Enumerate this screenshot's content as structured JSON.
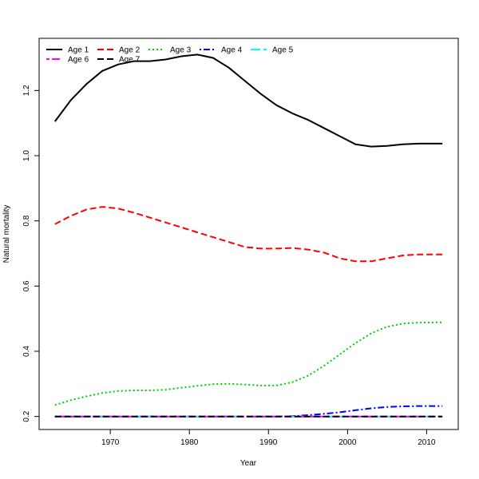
{
  "chart_data": {
    "type": "line",
    "title": "",
    "xlabel": "Year",
    "ylabel": "Natural mortality",
    "xlim": [
      1961,
      2014
    ],
    "ylim": [
      0.16,
      1.36
    ],
    "xticks": [
      1970,
      1980,
      1990,
      2000,
      2010
    ],
    "yticks": [
      0.2,
      0.4,
      0.6,
      0.8,
      1.0,
      1.2
    ],
    "grid": false,
    "legend": "top-left",
    "x": [
      1963,
      1965,
      1967,
      1969,
      1971,
      1973,
      1975,
      1977,
      1979,
      1981,
      1983,
      1985,
      1987,
      1989,
      1991,
      1993,
      1995,
      1997,
      1999,
      2001,
      2003,
      2005,
      2007,
      2009,
      2012
    ],
    "series": [
      {
        "name": "Age 1",
        "color": "#000000",
        "dash": "solid",
        "values": [
          1.105,
          1.17,
          1.22,
          1.26,
          1.28,
          1.29,
          1.29,
          1.295,
          1.305,
          1.31,
          1.3,
          1.27,
          1.23,
          1.19,
          1.155,
          1.13,
          1.11,
          1.085,
          1.06,
          1.035,
          1.028,
          1.03,
          1.035,
          1.037,
          1.037
        ]
      },
      {
        "name": "Age 2",
        "color": "#ff0000",
        "dash": "dashed",
        "values": [
          0.79,
          0.815,
          0.835,
          0.843,
          0.838,
          0.825,
          0.81,
          0.795,
          0.78,
          0.765,
          0.75,
          0.735,
          0.72,
          0.715,
          0.715,
          0.717,
          0.712,
          0.703,
          0.685,
          0.676,
          0.676,
          0.685,
          0.694,
          0.697,
          0.697
        ]
      },
      {
        "name": "Age 3",
        "color": "#00cd00",
        "dash": "dotted",
        "values": [
          0.235,
          0.25,
          0.262,
          0.272,
          0.278,
          0.28,
          0.28,
          0.282,
          0.288,
          0.294,
          0.299,
          0.3,
          0.298,
          0.295,
          0.295,
          0.305,
          0.325,
          0.355,
          0.39,
          0.425,
          0.455,
          0.475,
          0.485,
          0.488,
          0.489
        ]
      },
      {
        "name": "Age 4",
        "color": "#0000ff",
        "dash": "dotdash",
        "values": [
          0.2,
          0.2,
          0.2,
          0.2,
          0.2,
          0.2,
          0.2,
          0.2,
          0.2,
          0.2,
          0.2,
          0.2,
          0.2,
          0.2,
          0.2,
          0.201,
          0.204,
          0.208,
          0.213,
          0.219,
          0.225,
          0.229,
          0.231,
          0.232,
          0.232
        ]
      },
      {
        "name": "Age 5",
        "color": "#00ffff",
        "dash": "longdash",
        "values": [
          0.2,
          0.2,
          0.2,
          0.2,
          0.2,
          0.2,
          0.2,
          0.2,
          0.2,
          0.2,
          0.2,
          0.2,
          0.2,
          0.2,
          0.2,
          0.2,
          0.2,
          0.2,
          0.2,
          0.2,
          0.2,
          0.2,
          0.2,
          0.2,
          0.2
        ]
      },
      {
        "name": "Age 6",
        "color": "#ff00ff",
        "dash": "twodash",
        "values": [
          0.2,
          0.2,
          0.2,
          0.2,
          0.2,
          0.2,
          0.2,
          0.2,
          0.2,
          0.2,
          0.2,
          0.2,
          0.2,
          0.2,
          0.2,
          0.2,
          0.2,
          0.2,
          0.2,
          0.2,
          0.2,
          0.2,
          0.2,
          0.2,
          0.2
        ]
      },
      {
        "name": "Age 7",
        "color": "#000000",
        "dash": "dashed",
        "values": [
          0.2,
          0.2,
          0.2,
          0.2,
          0.2,
          0.2,
          0.2,
          0.2,
          0.2,
          0.2,
          0.2,
          0.2,
          0.2,
          0.2,
          0.2,
          0.2,
          0.2,
          0.2,
          0.2,
          0.2,
          0.2,
          0.2,
          0.2,
          0.2,
          0.2
        ]
      }
    ]
  }
}
